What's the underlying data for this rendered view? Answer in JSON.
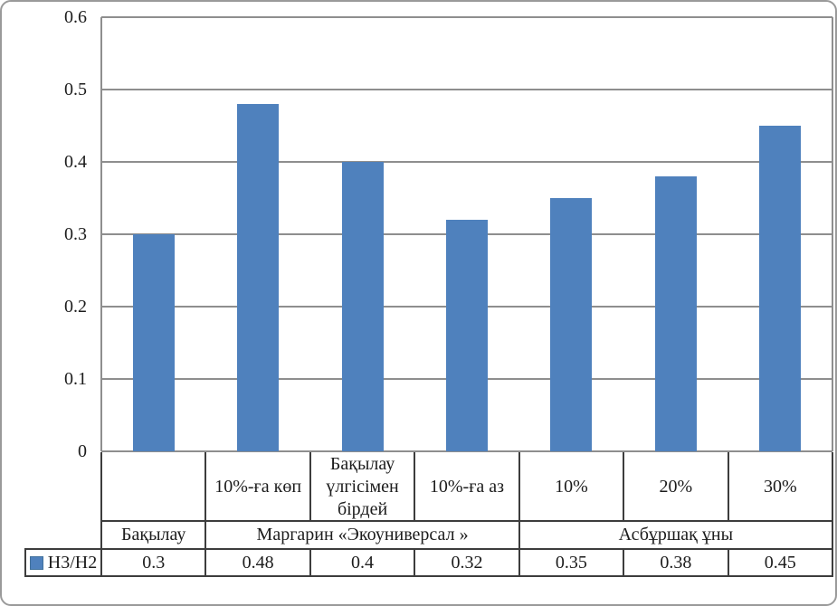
{
  "chart_data": {
    "type": "bar",
    "title": "",
    "xlabel": "",
    "ylabel": "",
    "grid": true,
    "legend_position": "bottom-table-row",
    "ylim": [
      0,
      0.6
    ],
    "y_ticks": [
      "0.6",
      "0.5",
      "0.4",
      "0.3",
      "0.2",
      "0.1",
      "0"
    ],
    "categories": [
      "",
      "10%-ға көп",
      "Бақылау үлгісімен бірдей",
      "10%-ға аз",
      "10%",
      "20%",
      "30%"
    ],
    "category_groups": [
      {
        "label": "Бақылау",
        "span": 1
      },
      {
        "label": "Маргарин «Экоуниверсал »",
        "span": 3
      },
      {
        "label": "Асбұршақ ұны",
        "span": 3
      }
    ],
    "series": [
      {
        "name": "Н3/Н2",
        "values": [
          0.3,
          0.48,
          0.4,
          0.32,
          0.35,
          0.38,
          0.45
        ],
        "value_labels": [
          "0.3",
          "0.48",
          "0.4",
          "0.32",
          "0.35",
          "0.38",
          "0.45"
        ]
      }
    ],
    "colors": {
      "bar_fill": "#4f81bd",
      "bar_swatch_border": "#41719c",
      "gridline": "#8e8e8e",
      "table_border": "#3d3d3d",
      "text": "#1c1c1c",
      "background": "#ffffff"
    }
  }
}
